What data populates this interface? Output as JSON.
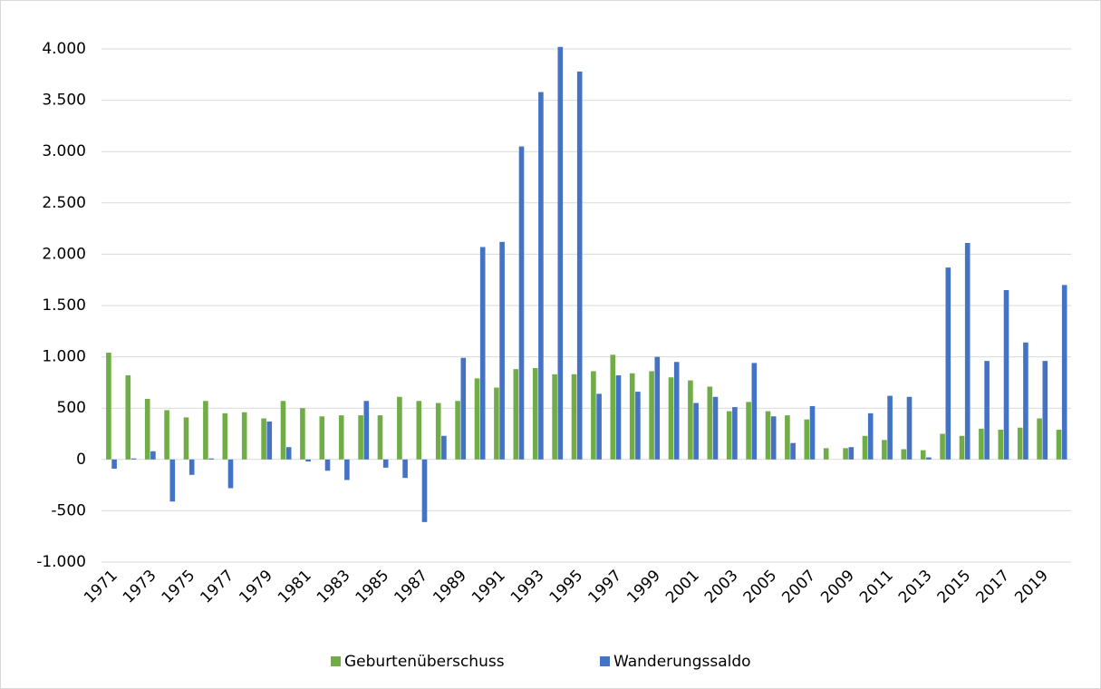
{
  "chart_data": {
    "type": "bar",
    "categories": [
      "1971",
      null,
      "1973",
      null,
      "1975",
      null,
      "1977",
      null,
      "1979",
      null,
      "1981",
      null,
      "1983",
      null,
      "1985",
      null,
      "1987",
      null,
      "1989",
      null,
      "1991",
      null,
      "1993",
      null,
      "1995",
      null,
      "1997",
      null,
      "1999",
      null,
      "2001",
      null,
      "2003",
      null,
      "2005",
      null,
      "2007",
      null,
      "2009",
      null,
      "2011",
      null,
      "2013",
      null,
      "2015",
      null,
      "2017",
      null,
      "2019",
      null
    ],
    "series": [
      {
        "name": "Geburtenüberschuss",
        "color": "#70ad47",
        "values": [
          1040,
          820,
          590,
          480,
          410,
          570,
          450,
          460,
          400,
          570,
          500,
          420,
          430,
          430,
          430,
          610,
          570,
          550,
          570,
          790,
          700,
          880,
          890,
          830,
          830,
          860,
          1020,
          840,
          860,
          800,
          770,
          710,
          470,
          560,
          470,
          430,
          390,
          110,
          110,
          230,
          190,
          100,
          90,
          250,
          230,
          300,
          290,
          310,
          400,
          290
        ]
      },
      {
        "name": "Wanderungssaldo",
        "color": "#4472c4",
        "values": [
          -90,
          10,
          80,
          -410,
          -150,
          10,
          -280,
          0,
          370,
          120,
          -20,
          -110,
          -200,
          570,
          -80,
          -180,
          -610,
          230,
          990,
          2070,
          2120,
          3050,
          3580,
          4020,
          3780,
          640,
          820,
          660,
          1000,
          950,
          550,
          610,
          510,
          940,
          420,
          160,
          520,
          0,
          120,
          450,
          620,
          610,
          20,
          1870,
          2110,
          960,
          1650,
          1140,
          960,
          1700
        ]
      }
    ],
    "ylim": [
      -1000,
      4000
    ],
    "yticks": [
      {
        "value": -1000,
        "label": "-1.000"
      },
      -500,
      0,
      500,
      {
        "value": 1000,
        "label": "1.000"
      },
      {
        "value": 1500,
        "label": "1.500"
      },
      {
        "value": 2000,
        "label": "2.000"
      },
      {
        "value": 2500,
        "label": "2.500"
      },
      {
        "value": 3000,
        "label": "3.000"
      },
      {
        "value": 3500,
        "label": "3.500"
      },
      {
        "value": 4000,
        "label": "4.000"
      }
    ],
    "grid": true,
    "legend": "bottom"
  }
}
